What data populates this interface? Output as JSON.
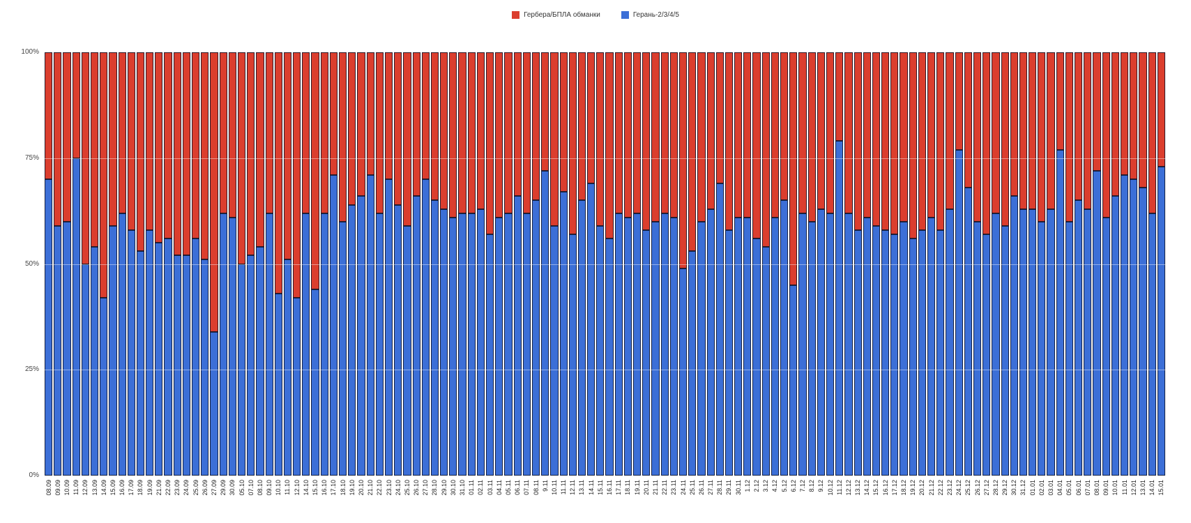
{
  "legend": {
    "items": [
      {
        "label": "Гербера/БПЛА обманки"
      },
      {
        "label": "Герань-2/3/4/5"
      }
    ]
  },
  "axis": {
    "y_ticks": [
      "100%",
      "75%",
      "50%",
      "25%",
      "0%"
    ]
  },
  "chart_data": {
    "type": "bar",
    "stacked": true,
    "percent": true,
    "title": "",
    "xlabel": "",
    "ylabel": "",
    "ylim": [
      0,
      100
    ],
    "grid": true,
    "legend_position": "top",
    "categories": [
      "08.09",
      "09.09",
      "10.09",
      "11.09",
      "12.09",
      "13.09",
      "14.09",
      "15.09",
      "16.09",
      "17.09",
      "18.09",
      "19.09",
      "21.09",
      "22.09",
      "23.09",
      "24.09",
      "25.09",
      "26.09",
      "27.09",
      "29.09",
      "30.09",
      "05.10",
      "07.10",
      "08.10",
      "09.10",
      "10.10",
      "11.10",
      "12.10",
      "14.10",
      "15.10",
      "16.10",
      "17.10",
      "18.10",
      "19.10",
      "20.10",
      "21.10",
      "22.10",
      "23.10",
      "24.10",
      "25.10",
      "26.10",
      "27.10",
      "28.10",
      "29.10",
      "30.10",
      "31.10",
      "01.11",
      "02.11",
      "03.11",
      "04.11",
      "05.11",
      "06.11",
      "07.11",
      "08.11",
      "9.11",
      "10.11",
      "11.11",
      "12.11",
      "13.11",
      "14.11",
      "15.11",
      "16.11",
      "17.11",
      "18.11",
      "19.11",
      "20.11",
      "21.11",
      "22.11",
      "23.11",
      "24.11",
      "25.11",
      "26.11",
      "27.11",
      "28.11",
      "29.11",
      "30.11",
      "1.12",
      "2.12",
      "3.12",
      "4.12",
      "5.12",
      "6.12",
      "7.12",
      "8.12",
      "9.12",
      "10.12",
      "11.12",
      "12.12",
      "13.12",
      "14.12",
      "15.12",
      "16.12",
      "17.12",
      "18.12",
      "19.12",
      "20.12",
      "21.12",
      "22.12",
      "23.12",
      "24.12",
      "25.12",
      "26.12",
      "27.12",
      "28.12",
      "29.12",
      "30.12",
      "31.12",
      "01.01",
      "02.01",
      "03.01",
      "04.01",
      "05.01",
      "06.01",
      "07.01",
      "08.01",
      "09.01",
      "10.01",
      "11.01",
      "12.01",
      "13.01",
      "14.01",
      "15.01"
    ],
    "series": [
      {
        "name": "Гербера/БПЛА обманки",
        "color": "#DB3E2E",
        "values": [
          30,
          41,
          40,
          25,
          50,
          46,
          58,
          41,
          38,
          42,
          47,
          42,
          45,
          44,
          48,
          48,
          44,
          49,
          66,
          38,
          39,
          50,
          48,
          46,
          38,
          57,
          49,
          58,
          38,
          56,
          38,
          29,
          40,
          36,
          34,
          29,
          38,
          30,
          36,
          41,
          34,
          30,
          35,
          37,
          39,
          38,
          38,
          37,
          43,
          39,
          38,
          34,
          38,
          35,
          28,
          41,
          33,
          43,
          35,
          31,
          41,
          44,
          38,
          39,
          38,
          42,
          40,
          38,
          39,
          51,
          47,
          40,
          37,
          31,
          42,
          39,
          39,
          44,
          46,
          39,
          35,
          55,
          38,
          40,
          37,
          38,
          21,
          38,
          42,
          39,
          41,
          42,
          43,
          40,
          44,
          42,
          39,
          42,
          37,
          23,
          32,
          40,
          43,
          38,
          41,
          34,
          37,
          37,
          40,
          37,
          23,
          40,
          35,
          37,
          28,
          39,
          34,
          29,
          30,
          32,
          38,
          27
        ]
      },
      {
        "name": "Герань-2/3/4/5",
        "color": "#3C6FD7",
        "values": [
          70,
          59,
          60,
          75,
          50,
          54,
          42,
          59,
          62,
          58,
          53,
          58,
          55,
          56,
          52,
          52,
          56,
          51,
          34,
          62,
          61,
          50,
          52,
          54,
          62,
          43,
          51,
          42,
          62,
          44,
          62,
          71,
          60,
          64,
          66,
          71,
          62,
          70,
          64,
          59,
          66,
          70,
          65,
          63,
          61,
          62,
          62,
          63,
          57,
          61,
          62,
          66,
          62,
          65,
          72,
          59,
          67,
          57,
          65,
          69,
          59,
          56,
          62,
          61,
          62,
          58,
          60,
          62,
          61,
          49,
          53,
          60,
          63,
          69,
          58,
          61,
          61,
          56,
          54,
          61,
          65,
          45,
          62,
          60,
          63,
          62,
          79,
          62,
          58,
          61,
          59,
          58,
          57,
          60,
          56,
          58,
          61,
          58,
          63,
          77,
          68,
          60,
          57,
          62,
          59,
          66,
          63,
          63,
          60,
          63,
          77,
          60,
          65,
          63,
          72,
          61,
          66,
          71,
          70,
          68,
          62,
          73
        ]
      }
    ]
  }
}
